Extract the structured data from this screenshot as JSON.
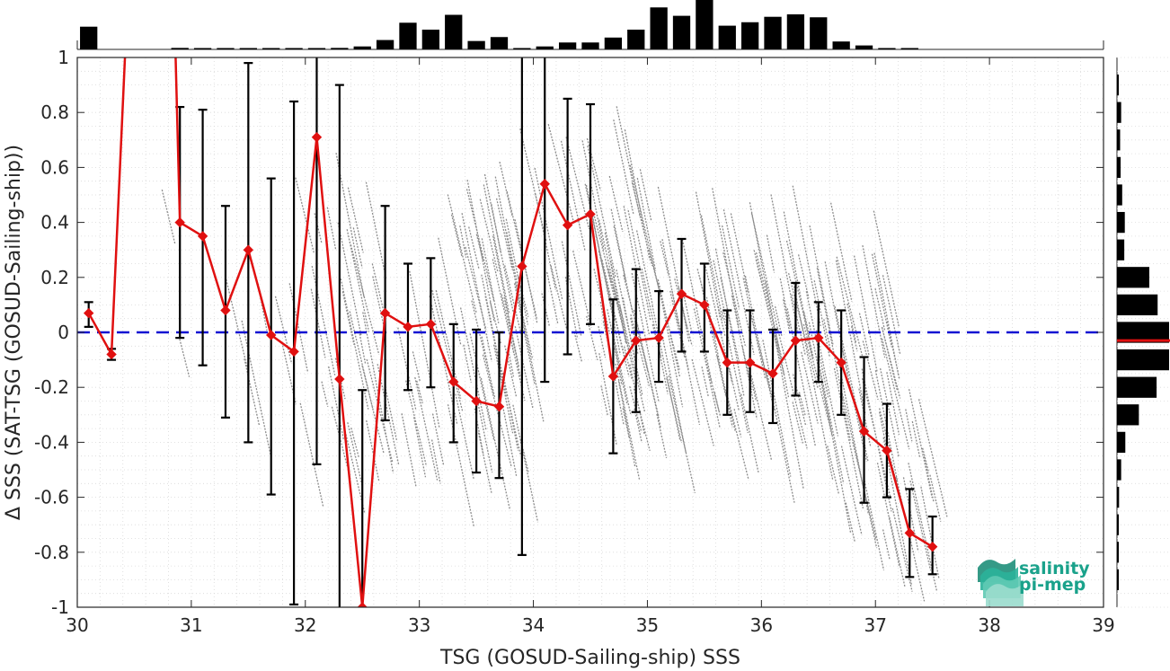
{
  "chart_data": {
    "type": "scatter",
    "xlabel": "TSG (GOSUD-Sailing-ship) SSS",
    "ylabel": "Δ SSS (SAT-TSG (GOSUD-Sailing-ship))",
    "xlim": [
      30,
      39
    ],
    "ylim": [
      -1,
      1
    ],
    "xticks": [
      30,
      31,
      32,
      33,
      34,
      35,
      36,
      37,
      38,
      39
    ],
    "yticks": [
      -1,
      -0.8,
      -0.6,
      -0.4,
      -0.2,
      0,
      0.2,
      0.4,
      0.6,
      0.8,
      1
    ],
    "grid": "dotted, minor",
    "zero_line": {
      "y": 0,
      "color": "#1414d2",
      "style": "dashed"
    },
    "colors": {
      "scatter": "#8c8c8c",
      "mean_line": "#e01010",
      "errorbar": "#000000",
      "histogram": "#000000",
      "logo_text": "#1aa28b"
    },
    "series": [
      {
        "type": "line-with-errorbars",
        "x": [
          30.1,
          30.3,
          30.9,
          31.1,
          31.3,
          31.5,
          31.7,
          31.9,
          32.1,
          32.3,
          32.5,
          32.7,
          32.9,
          33.1,
          33.3,
          33.5,
          33.7,
          33.9,
          34.1,
          34.3,
          34.5,
          34.7,
          34.9,
          35.1,
          35.3,
          35.5,
          35.7,
          35.9,
          36.1,
          36.3,
          36.5,
          36.7,
          36.9,
          37.1,
          37.3,
          37.5
        ],
        "mean": [
          0.07,
          -0.08,
          0.4,
          0.35,
          0.08,
          0.3,
          -0.01,
          -0.07,
          0.71,
          -0.17,
          -1.0,
          0.07,
          0.02,
          0.03,
          -0.18,
          -0.25,
          -0.27,
          0.24,
          0.54,
          0.39,
          0.43,
          -0.16,
          -0.03,
          -0.02,
          0.14,
          0.1,
          -0.11,
          -0.11,
          -0.15,
          -0.03,
          -0.02,
          -0.11,
          -0.36,
          -0.43,
          -0.73,
          -0.78
        ],
        "err_low": [
          0.02,
          -0.1,
          -0.02,
          -0.12,
          -0.31,
          -0.4,
          -0.59,
          -0.99,
          -0.48,
          -1.2,
          -1.2,
          -0.32,
          -0.21,
          -0.2,
          -0.4,
          -0.51,
          -0.53,
          -0.81,
          -0.18,
          -0.08,
          0.03,
          -0.44,
          -0.29,
          -0.18,
          -0.07,
          -0.07,
          -0.3,
          -0.29,
          -0.33,
          -0.23,
          -0.18,
          -0.3,
          -0.62,
          -0.6,
          -0.89,
          -0.88
        ],
        "err_high": [
          0.11,
          -0.06,
          0.82,
          0.81,
          0.46,
          0.98,
          0.56,
          0.84,
          1.2,
          0.9,
          -0.21,
          0.46,
          0.25,
          0.27,
          0.03,
          0.01,
          0.0,
          1.2,
          1.2,
          0.85,
          0.83,
          0.12,
          0.23,
          0.15,
          0.34,
          0.25,
          0.08,
          0.08,
          0.01,
          0.18,
          0.11,
          0.08,
          -0.09,
          -0.26,
          -0.57,
          -0.67
        ],
        "extra_line_points": {
          "x": [
            30.44,
            30.85
          ],
          "y": [
            1.2,
            1.2
          ]
        }
      }
    ],
    "top_histogram": {
      "bin_centers": [
        30.1,
        30.3,
        30.5,
        30.7,
        30.9,
        31.1,
        31.3,
        31.5,
        31.7,
        31.9,
        32.1,
        32.3,
        32.5,
        32.7,
        32.9,
        33.1,
        33.3,
        33.5,
        33.7,
        33.9,
        34.1,
        34.3,
        34.5,
        34.7,
        34.9,
        35.1,
        35.3,
        35.5,
        35.7,
        35.9,
        36.1,
        36.3,
        36.5,
        36.7,
        36.9,
        37.1,
        37.3,
        37.5,
        37.7,
        37.9,
        38.1,
        38.3,
        38.5,
        38.7,
        38.9
      ],
      "counts": [
        0.46,
        0,
        0,
        0,
        0.03,
        0.02,
        0.02,
        0.02,
        0.02,
        0.02,
        0.02,
        0.03,
        0.06,
        0.19,
        0.54,
        0.4,
        0.7,
        0.17,
        0.25,
        0.02,
        0.06,
        0.14,
        0.14,
        0.24,
        0.4,
        0.85,
        0.68,
        1.0,
        0.48,
        0.55,
        0.66,
        0.71,
        0.65,
        0.16,
        0.08,
        0.02,
        0.02,
        0,
        0,
        0,
        0,
        0,
        0,
        0,
        0
      ]
    },
    "right_histogram": {
      "bin_centers": [
        0.9,
        0.8,
        0.7,
        0.6,
        0.5,
        0.4,
        0.3,
        0.2,
        0.1,
        0.0,
        -0.1,
        -0.2,
        -0.3,
        -0.4,
        -0.5,
        -0.6,
        -0.7,
        -0.8,
        -0.9
      ],
      "counts": [
        0.03,
        0.08,
        0.06,
        0.07,
        0.1,
        0.15,
        0.14,
        0.62,
        0.78,
        1.0,
        1.0,
        0.76,
        0.42,
        0.16,
        0.08,
        0.04,
        0.03,
        0.02,
        0.02
      ],
      "mean_marker": -0.03
    }
  },
  "logo": {
    "line1": "salinity",
    "line2": "pi-mep"
  }
}
